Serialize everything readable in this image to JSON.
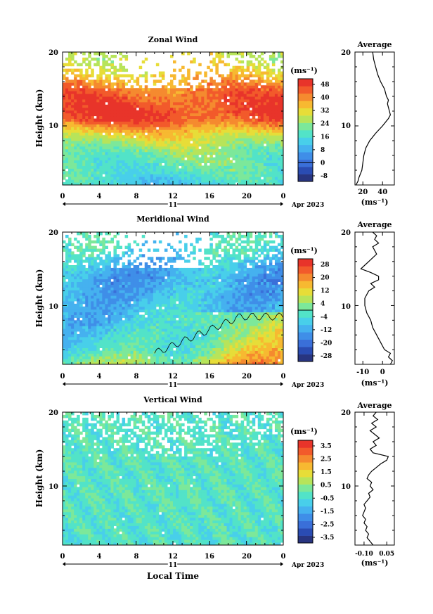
{
  "chart_data": [
    {
      "type": "heatmap",
      "title": "Zonal Wind",
      "ylabel": "Height (km)",
      "xlabel": "",
      "x_ticks": [
        "0",
        "4",
        "8",
        "12",
        "16",
        "20",
        "0"
      ],
      "y_ticks": [
        "20",
        "10"
      ],
      "date_day": "11",
      "date_month": "Apr 2023",
      "xlim": [
        0,
        24
      ],
      "ylim": [
        2,
        20
      ],
      "colorbar": {
        "unit": "(ms⁻¹)",
        "ticks": [
          "48",
          "40",
          "32",
          "24",
          "16",
          "8",
          "0",
          "-8"
        ],
        "range": [
          -12,
          52
        ],
        "colors": [
          "#283580",
          "#2a4cb3",
          "#3a6fd9",
          "#3f8ee8",
          "#45b1ef",
          "#48cfea",
          "#52e3c8",
          "#7ce89a",
          "#b7e45a",
          "#e7dd38",
          "#f7b931",
          "#f58a2f",
          "#f25a2b",
          "#e8342a"
        ]
      },
      "contour_zero": false,
      "profile_samples": [
        {
          "height": 2.0,
          "value": 14
        },
        {
          "height": 4.0,
          "value": 18
        },
        {
          "height": 6.0,
          "value": 21
        },
        {
          "height": 8.0,
          "value": 27
        },
        {
          "height": 9.0,
          "value": 33
        },
        {
          "height": 10.0,
          "value": 40
        },
        {
          "height": 11.0,
          "value": 47
        },
        {
          "height": 12.0,
          "value": 48
        },
        {
          "height": 13.0,
          "value": 46
        },
        {
          "height": 14.0,
          "value": 45
        },
        {
          "height": 15.0,
          "value": 42
        },
        {
          "height": 16.0,
          "value": 38
        },
        {
          "height": 17.0,
          "value": 34
        },
        {
          "height": 18.0,
          "value": 32
        },
        {
          "height": 19.0,
          "value": 30
        },
        {
          "height": 20.0,
          "value": 30
        }
      ],
      "average": {
        "title": "Average",
        "unit": "(ms⁻¹)",
        "x_ticks": [
          "20",
          "40"
        ],
        "x_tick_values": [
          20,
          40
        ],
        "xlim": [
          12,
          52
        ],
        "ylim": [
          2,
          20
        ],
        "y_ticks": [
          "20",
          "10"
        ],
        "profile": [
          {
            "height": 2.0,
            "value": 13
          },
          {
            "height": 2.5,
            "value": 15
          },
          {
            "height": 3.0,
            "value": 16
          },
          {
            "height": 4.0,
            "value": 19
          },
          {
            "height": 5.0,
            "value": 20
          },
          {
            "height": 6.0,
            "value": 21
          },
          {
            "height": 7.0,
            "value": 23
          },
          {
            "height": 8.0,
            "value": 27
          },
          {
            "height": 9.0,
            "value": 33
          },
          {
            "height": 10.0,
            "value": 40
          },
          {
            "height": 11.0,
            "value": 46
          },
          {
            "height": 11.5,
            "value": 48
          },
          {
            "height": 12.0,
            "value": 47
          },
          {
            "height": 12.5,
            "value": 46
          },
          {
            "height": 13.0,
            "value": 45
          },
          {
            "height": 13.5,
            "value": 46
          },
          {
            "height": 14.0,
            "value": 44
          },
          {
            "height": 15.0,
            "value": 42
          },
          {
            "height": 16.0,
            "value": 38
          },
          {
            "height": 17.0,
            "value": 35
          },
          {
            "height": 18.0,
            "value": 33
          },
          {
            "height": 19.0,
            "value": 31
          },
          {
            "height": 20.0,
            "value": 30
          }
        ]
      }
    },
    {
      "type": "heatmap",
      "title": "Meridional Wind",
      "ylabel": "Height (km)",
      "xlabel": "",
      "x_ticks": [
        "0",
        "4",
        "8",
        "12",
        "16",
        "20",
        "0"
      ],
      "y_ticks": [
        "20",
        "10"
      ],
      "date_day": "11",
      "date_month": "Apr 2023",
      "xlim": [
        0,
        24
      ],
      "ylim": [
        2,
        20
      ],
      "colorbar": {
        "unit": "(ms⁻¹)",
        "ticks": [
          "28",
          "20",
          "12",
          "4",
          "-4",
          "-12",
          "-20",
          "-28"
        ],
        "range": [
          -32,
          32
        ],
        "colors": [
          "#283580",
          "#2a4cb3",
          "#3a6fd9",
          "#3f8ee8",
          "#45b1ef",
          "#48cfea",
          "#52e3c8",
          "#7ce89a",
          "#b7e45a",
          "#e7dd38",
          "#f7b931",
          "#f58a2f",
          "#f25a2b",
          "#e8342a"
        ]
      },
      "contour_zero": true,
      "profile_samples": [
        {
          "height": 2.0,
          "value": 3
        },
        {
          "height": 4.0,
          "value": -3
        },
        {
          "height": 6.0,
          "value": -6
        },
        {
          "height": 8.0,
          "value": -8
        },
        {
          "height": 10.0,
          "value": -9
        },
        {
          "height": 12.0,
          "value": -11
        },
        {
          "height": 14.0,
          "value": -12
        },
        {
          "height": 16.0,
          "value": -9
        },
        {
          "height": 18.0,
          "value": -4
        },
        {
          "height": 20.0,
          "value": -5
        }
      ],
      "average": {
        "title": "Average",
        "unit": "(ms⁻¹)",
        "x_ticks": [
          "-10",
          "0"
        ],
        "x_tick_values": [
          -10,
          0
        ],
        "xlim": [
          -14,
          6
        ],
        "ylim": [
          2,
          20
        ],
        "y_ticks": [
          "20",
          "10"
        ],
        "profile": [
          {
            "height": 2.0,
            "value": 4
          },
          {
            "height": 2.5,
            "value": 5
          },
          {
            "height": 3.0,
            "value": 3
          },
          {
            "height": 3.5,
            "value": 4
          },
          {
            "height": 4.0,
            "value": 1
          },
          {
            "height": 5.0,
            "value": -1
          },
          {
            "height": 6.0,
            "value": -3
          },
          {
            "height": 7.0,
            "value": -5
          },
          {
            "height": 8.0,
            "value": -6
          },
          {
            "height": 9.0,
            "value": -8
          },
          {
            "height": 10.0,
            "value": -9
          },
          {
            "height": 11.0,
            "value": -9
          },
          {
            "height": 12.0,
            "value": -7
          },
          {
            "height": 12.5,
            "value": -4
          },
          {
            "height": 13.0,
            "value": -6
          },
          {
            "height": 13.5,
            "value": -2
          },
          {
            "height": 14.0,
            "value": -2
          },
          {
            "height": 14.5,
            "value": -6
          },
          {
            "height": 15.0,
            "value": -11
          },
          {
            "height": 15.5,
            "value": -9
          },
          {
            "height": 16.0,
            "value": -7
          },
          {
            "height": 17.0,
            "value": -3
          },
          {
            "height": 18.0,
            "value": -5
          },
          {
            "height": 18.5,
            "value": -2
          },
          {
            "height": 19.0,
            "value": -4
          },
          {
            "height": 19.5,
            "value": -3
          },
          {
            "height": 20.0,
            "value": -5
          }
        ]
      }
    },
    {
      "type": "heatmap",
      "title": "Vertical Wind",
      "ylabel": "Height (km)",
      "xlabel": "Local Time",
      "x_ticks": [
        "0",
        "4",
        "8",
        "12",
        "16",
        "20",
        "0"
      ],
      "y_ticks": [
        "20",
        "10"
      ],
      "date_day": "11",
      "date_month": "Apr 2023",
      "xlim": [
        0,
        24
      ],
      "ylim": [
        2,
        20
      ],
      "colorbar": {
        "unit": "(ms⁻¹)",
        "ticks": [
          "3.5",
          "2.5",
          "1.5",
          "0.5",
          "-0.5",
          "-1.5",
          "-2.5",
          "-3.5"
        ],
        "range": [
          -4,
          4
        ],
        "colors": [
          "#283580",
          "#2a4cb3",
          "#3a6fd9",
          "#3f8ee8",
          "#45b1ef",
          "#48cfea",
          "#52e3c8",
          "#7ce89a",
          "#b7e45a",
          "#e7dd38",
          "#f7b931",
          "#f58a2f",
          "#f25a2b",
          "#e8342a"
        ]
      },
      "contour_zero": false,
      "profile_samples": [
        {
          "height": 2.0,
          "value": -0.3
        },
        {
          "height": 10.0,
          "value": -0.2
        },
        {
          "height": 20.0,
          "value": -0.2
        }
      ],
      "average": {
        "title": "Average",
        "unit": "(ms⁻¹)",
        "x_ticks": [
          "-0.10",
          "0.05"
        ],
        "x_tick_values": [
          -0.1,
          0.05
        ],
        "xlim": [
          -0.16,
          0.1
        ],
        "ylim": [
          2,
          20
        ],
        "y_ticks": [
          "20",
          "10"
        ],
        "profile": [
          {
            "height": 2.0,
            "value": -0.04
          },
          {
            "height": 2.5,
            "value": -0.06
          },
          {
            "height": 3.0,
            "value": -0.08
          },
          {
            "height": 3.5,
            "value": -0.07
          },
          {
            "height": 4.0,
            "value": -0.09
          },
          {
            "height": 4.5,
            "value": -0.08
          },
          {
            "height": 5.0,
            "value": -0.1
          },
          {
            "height": 5.5,
            "value": -0.09
          },
          {
            "height": 6.0,
            "value": -0.11
          },
          {
            "height": 6.5,
            "value": -0.1
          },
          {
            "height": 7.0,
            "value": -0.09
          },
          {
            "height": 7.5,
            "value": -0.1
          },
          {
            "height": 8.0,
            "value": -0.08
          },
          {
            "height": 8.5,
            "value": -0.06
          },
          {
            "height": 9.0,
            "value": -0.07
          },
          {
            "height": 9.5,
            "value": -0.04
          },
          {
            "height": 10.0,
            "value": -0.06
          },
          {
            "height": 10.5,
            "value": -0.05
          },
          {
            "height": 11.0,
            "value": -0.08
          },
          {
            "height": 11.5,
            "value": -0.07
          },
          {
            "height": 12.0,
            "value": -0.05
          },
          {
            "height": 12.5,
            "value": -0.02
          },
          {
            "height": 13.0,
            "value": 0.01
          },
          {
            "height": 13.5,
            "value": 0.05
          },
          {
            "height": 14.0,
            "value": 0.06
          },
          {
            "height": 14.5,
            "value": -0.04
          },
          {
            "height": 15.0,
            "value": -0.06
          },
          {
            "height": 15.5,
            "value": -0.02
          },
          {
            "height": 16.0,
            "value": -0.04
          },
          {
            "height": 16.5,
            "value": 0.0
          },
          {
            "height": 17.0,
            "value": -0.03
          },
          {
            "height": 17.5,
            "value": -0.06
          },
          {
            "height": 18.0,
            "value": -0.02
          },
          {
            "height": 18.5,
            "value": -0.05
          },
          {
            "height": 19.0,
            "value": -0.01
          },
          {
            "height": 19.5,
            "value": -0.04
          },
          {
            "height": 20.0,
            "value": -0.02
          }
        ]
      }
    }
  ]
}
